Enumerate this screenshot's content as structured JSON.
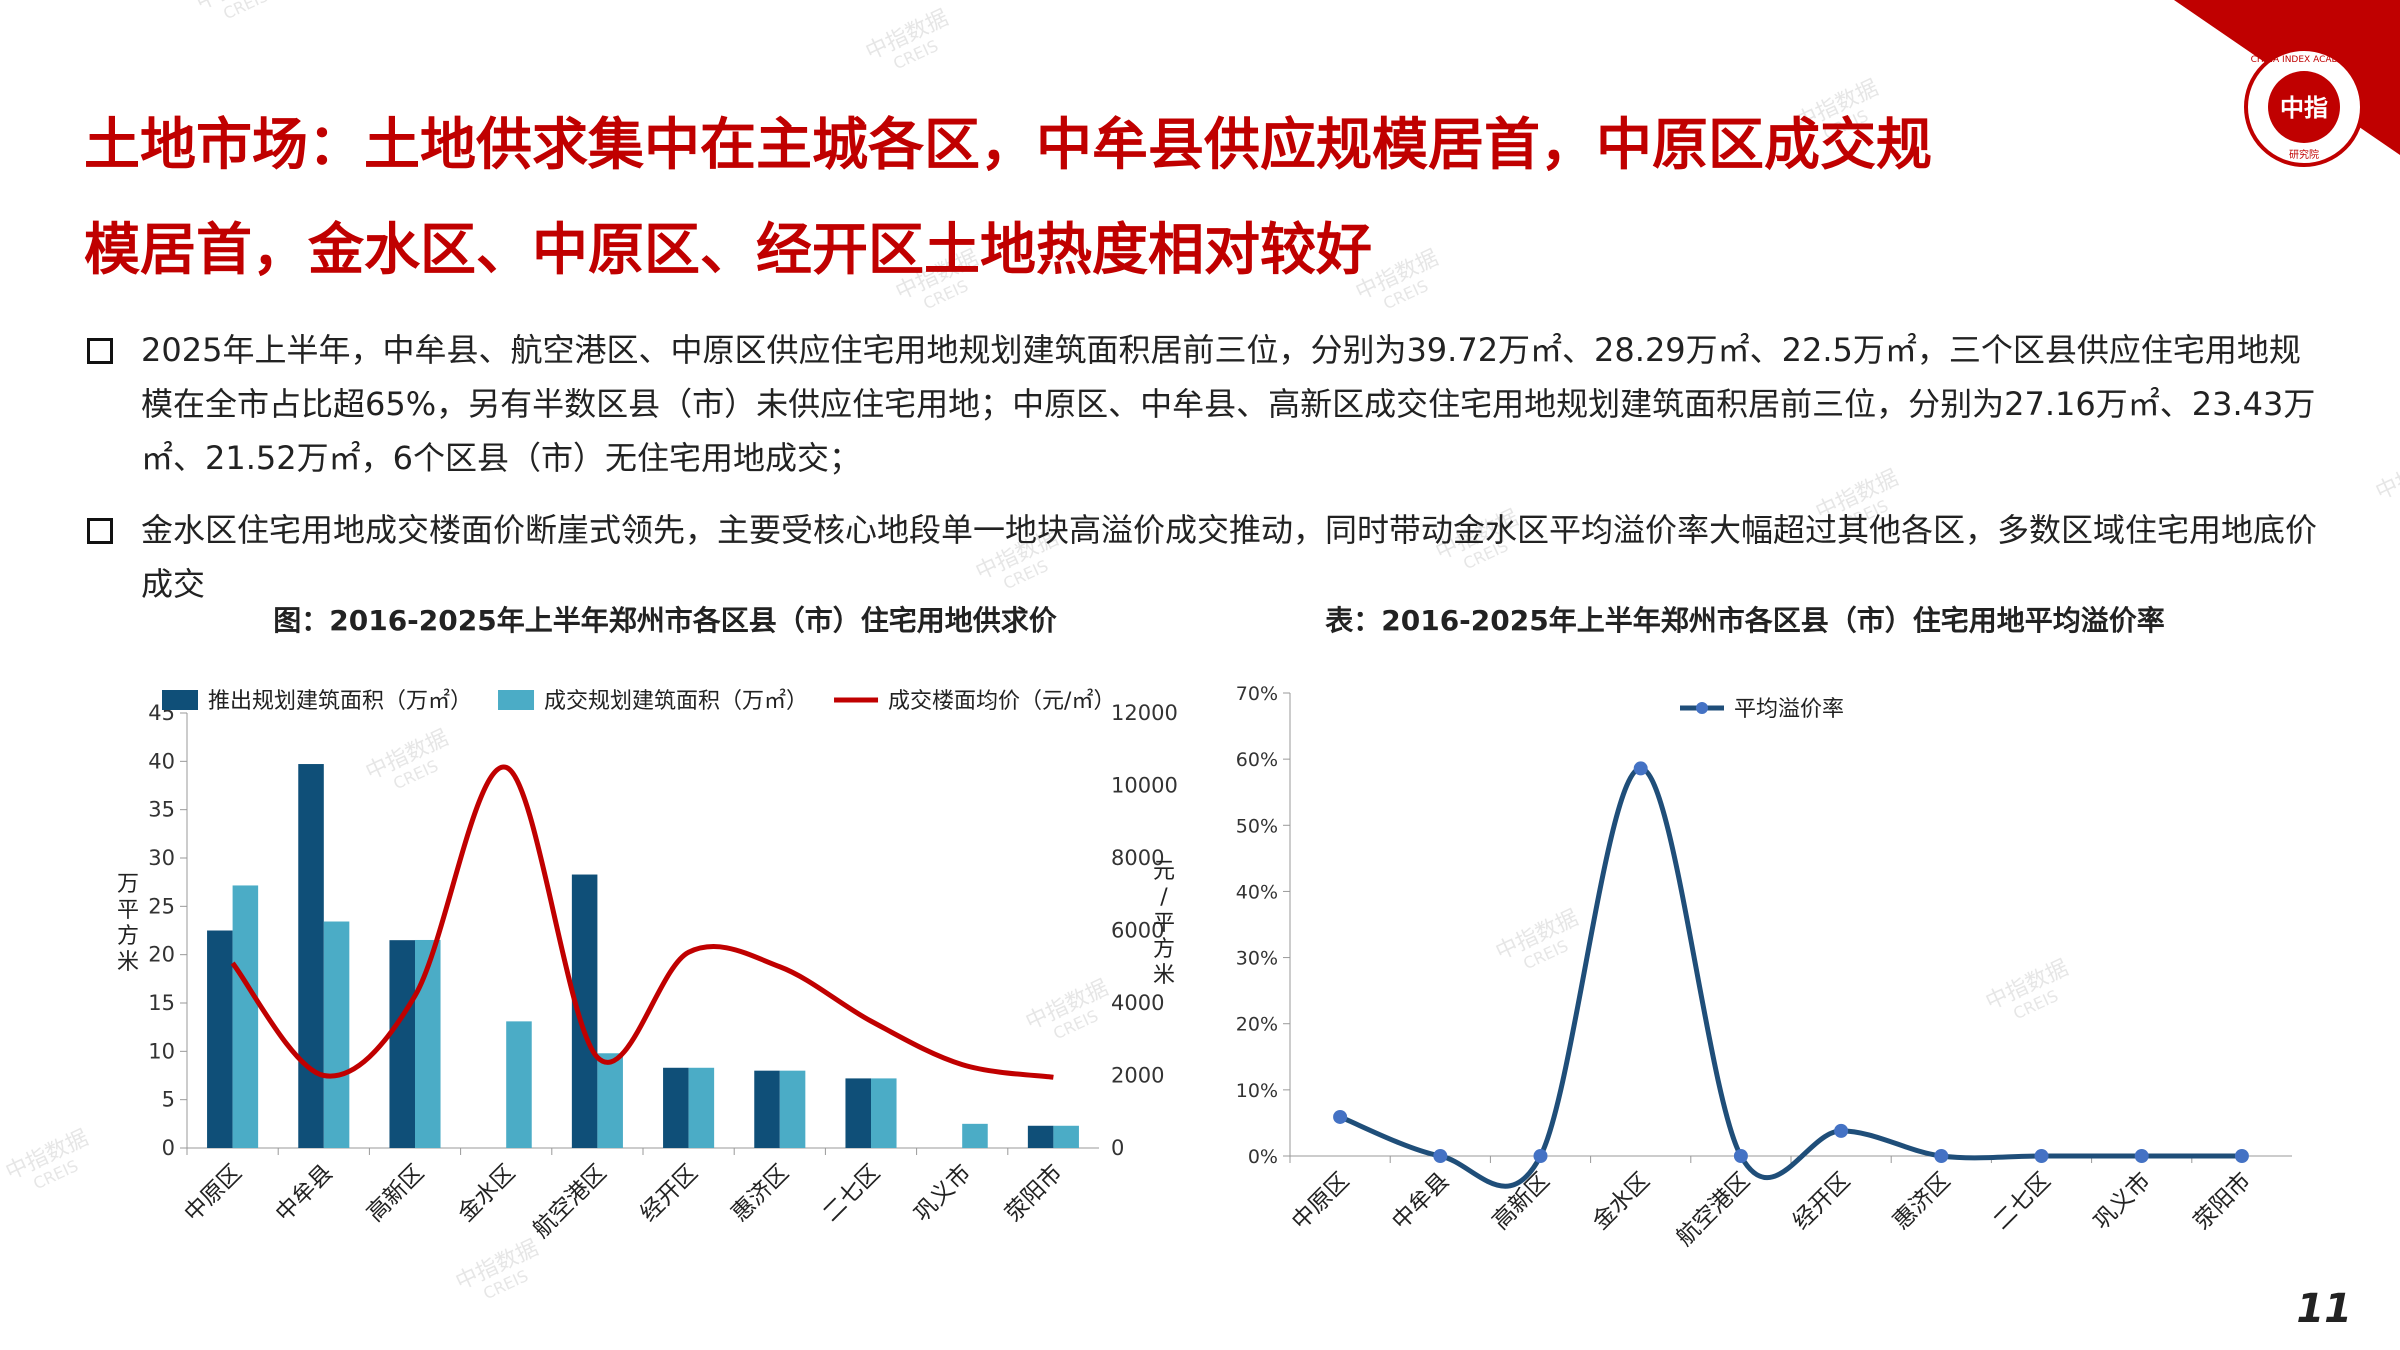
{
  "title_lines": [
    "土地市场：土地供求集中在主城各区，中牟县供应规模居首，中原区成交规",
    "模居首，金水区、中原区、经开区土地热度相对较好"
  ],
  "bullets": [
    "2025年上半年，中牟县、航空港区、中原区供应住宅用地规划建筑面积居前三位，分别为39.72万㎡、28.29万㎡、22.5万㎡，三个区县供应住宅用地规模在全市占比超65%，另有半数区县（市）未供应住宅用地；中原区、中牟县、高新区成交住宅用地规划建筑面积居前三位，分别为27.16万㎡、23.43万㎡、21.52万㎡，6个区县（市）无住宅用地成交；",
    "金水区住宅用地成交楼面价断崖式领先，主要受核心地段单一地块高溢价成交推动，同时带动金水区平均溢价率大幅超过其他各区，多数区域住宅用地底价成交"
  ],
  "logo": {
    "cn": "中指",
    "en": "CHINA INDEX ACADEMY",
    "sub": "研究院"
  },
  "watermark": {
    "cn": "中指数据",
    "en": "CREIS"
  },
  "page_number": "11",
  "chart_data": [
    {
      "type": "bar-line",
      "title": "图：2016-2025年上半年郑州市各区县（市）住宅用地供求价",
      "categories": [
        "中原区",
        "中牟县",
        "高新区",
        "金水区",
        "航空港区",
        "经开区",
        "惠济区",
        "二七区",
        "巩义市",
        "荥阳市"
      ],
      "series": [
        {
          "name": "推出规划建筑面积（万㎡）",
          "type": "bar",
          "color": "#0f4f78",
          "values": [
            22.5,
            39.72,
            21.5,
            0,
            28.29,
            8.3,
            8.0,
            7.2,
            0,
            2.3
          ]
        },
        {
          "name": "成交规划建筑面积（万㎡）",
          "type": "bar",
          "color": "#4bacc6",
          "values": [
            27.16,
            23.43,
            21.52,
            13.1,
            9.8,
            8.3,
            8.0,
            7.2,
            2.5,
            2.3
          ]
        },
        {
          "name": "成交楼面均价（元/㎡）",
          "type": "line",
          "axis": "y2",
          "color": "#c00000",
          "values": [
            5100,
            2000,
            4200,
            10500,
            2500,
            5400,
            5000,
            3500,
            2300,
            1950
          ]
        }
      ],
      "ylabel": "万平方米",
      "y2label": "元/平方米",
      "ylim": [
        0,
        45
      ],
      "yticks": [
        0,
        5,
        10,
        15,
        20,
        25,
        30,
        35,
        40,
        45
      ],
      "y2lim": [
        0,
        12000
      ],
      "y2ticks": [
        0,
        2000,
        4000,
        6000,
        8000,
        10000,
        12000
      ]
    },
    {
      "type": "line",
      "title": "表：2016-2025年上半年郑州市各区县（市）住宅用地平均溢价率",
      "categories": [
        "中原区",
        "中牟县",
        "高新区",
        "金水区",
        "航空港区",
        "经开区",
        "惠济区",
        "二七区",
        "巩义市",
        "荥阳市"
      ],
      "series": [
        {
          "name": "平均溢价率",
          "color": "#1f4e79",
          "values": [
            5.9,
            0,
            0,
            58.6,
            0,
            3.8,
            0,
            0,
            0,
            0
          ]
        }
      ],
      "ylim": [
        0,
        70
      ],
      "yticks": [
        {
          "value": 0,
          "label": "0%"
        },
        {
          "value": 10,
          "label": "10%"
        },
        {
          "value": 20,
          "label": "20%"
        },
        {
          "value": 30,
          "label": "30%"
        },
        {
          "value": 40,
          "label": "40%"
        },
        {
          "value": 50,
          "label": "50%"
        },
        {
          "value": 60,
          "label": "60%"
        },
        {
          "value": 70,
          "label": "70%"
        }
      ]
    }
  ]
}
